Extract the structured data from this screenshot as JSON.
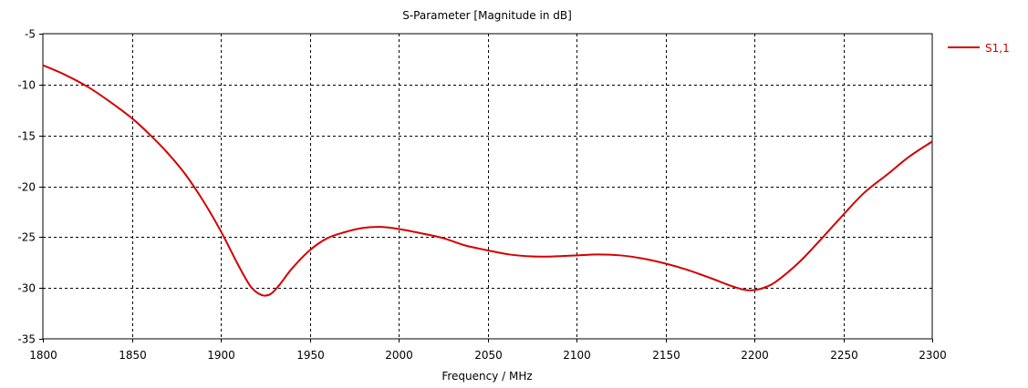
{
  "chart_data": {
    "type": "line",
    "title": "S-Parameter [Magnitude in dB]",
    "xlabel": "Frequency / MHz",
    "ylabel": "",
    "xlim": [
      1800,
      2300
    ],
    "ylim": [
      -35,
      -5
    ],
    "xticks": [
      1800,
      1850,
      1900,
      1950,
      2000,
      2050,
      2100,
      2150,
      2200,
      2250,
      2300
    ],
    "yticks": [
      -5,
      -10,
      -15,
      -20,
      -25,
      -30,
      -35
    ],
    "grid": true,
    "legend_position": "top-right-outside",
    "series": [
      {
        "name": "S1,1",
        "color": "#d40000",
        "x": [
          1800,
          1812,
          1825,
          1837,
          1850,
          1860,
          1870,
          1880,
          1890,
          1900,
          1910,
          1917,
          1923,
          1928,
          1933,
          1940,
          1950,
          1960,
          1970,
          1980,
          1990,
          2000,
          2012,
          2025,
          2037,
          2050,
          2062,
          2075,
          2087,
          2100,
          2112,
          2125,
          2137,
          2150,
          2162,
          2175,
          2187,
          2195,
          2200,
          2205,
          2212,
          2225,
          2237,
          2250,
          2262,
          2275,
          2287,
          2300
        ],
        "y": [
          -8.1,
          -9.0,
          -10.2,
          -11.6,
          -13.3,
          -14.9,
          -16.7,
          -18.8,
          -21.4,
          -24.4,
          -27.8,
          -29.9,
          -30.7,
          -30.6,
          -29.7,
          -28.1,
          -26.3,
          -25.1,
          -24.5,
          -24.1,
          -24.0,
          -24.2,
          -24.6,
          -25.1,
          -25.8,
          -26.3,
          -26.7,
          -26.9,
          -26.9,
          -26.8,
          -26.7,
          -26.8,
          -27.1,
          -27.6,
          -28.2,
          -29.0,
          -29.8,
          -30.2,
          -30.2,
          -30.0,
          -29.4,
          -27.5,
          -25.3,
          -22.8,
          -20.6,
          -18.8,
          -17.1,
          -15.6
        ]
      }
    ]
  }
}
